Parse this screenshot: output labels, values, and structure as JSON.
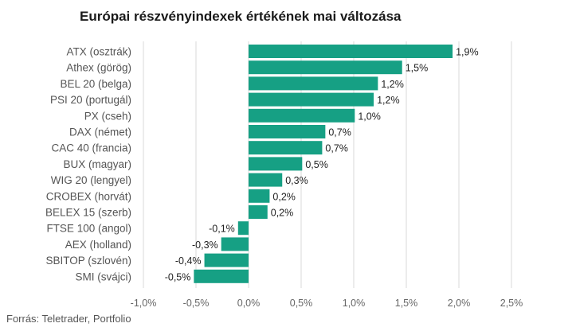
{
  "title": "Európai részvényindexek értékének mai változása",
  "source": "Forrás: Teletrader, Portfolio",
  "colors": {
    "bar": "#16a084",
    "grid": "#d9d9d9"
  },
  "chart_data": {
    "type": "bar",
    "orientation": "horizontal",
    "title": "Európai részvényindexek értékének mai változása",
    "categories": [
      "ATX (osztrák)",
      "Athex (görög)",
      "BEL 20 (belga)",
      "PSI 20 (portugál)",
      "PX (cseh)",
      "DAX (német)",
      "CAC 40 (francia)",
      "BUX (magyar)",
      "WIG 20 (lengyel)",
      "CROBEX (horvát)",
      "BELEX 15 (szerb)",
      "FTSE 100 (angol)",
      "AEX (holland)",
      "SBITOP (szlovén)",
      "SMI (svájci)"
    ],
    "values": [
      1.94,
      1.46,
      1.23,
      1.19,
      1.01,
      0.73,
      0.7,
      0.51,
      0.32,
      0.2,
      0.18,
      -0.1,
      -0.26,
      -0.42,
      -0.52
    ],
    "value_labels": [
      "1,9%",
      "1,5%",
      "1,2%",
      "1,2%",
      "1,0%",
      "0,7%",
      "0,7%",
      "0,5%",
      "0,3%",
      "0,2%",
      "0,2%",
      "-0,1%",
      "-0,3%",
      "-0,4%",
      "-0,5%"
    ],
    "xlim": [
      -1.0,
      2.5
    ],
    "ticks": [
      -1.0,
      -0.5,
      0.0,
      0.5,
      1.0,
      1.5,
      2.0,
      2.5
    ],
    "tick_labels": [
      "-1,0%",
      "-0,5%",
      "0,0%",
      "0,5%",
      "1,0%",
      "1,5%",
      "2,0%",
      "2,5%"
    ],
    "grid": true,
    "xlabel": "",
    "ylabel": ""
  }
}
